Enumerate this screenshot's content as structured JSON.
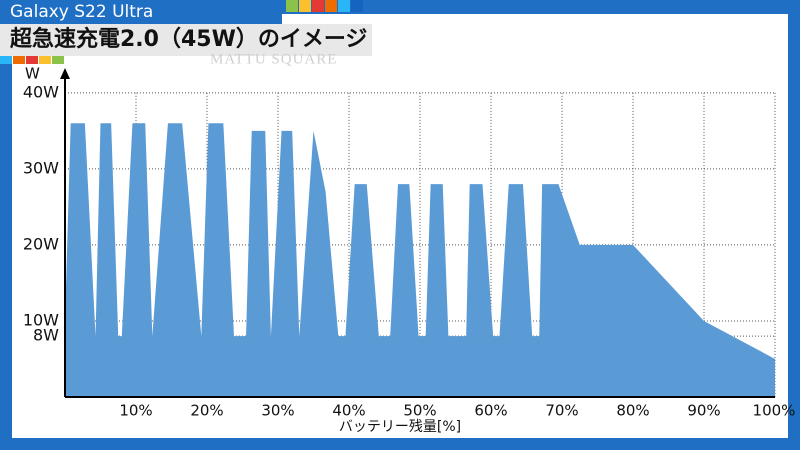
{
  "chart_data": {
    "type": "area",
    "subtitle": "Galaxy S22 Ultra",
    "title": "超急速充電2.0（45W）のイメージ",
    "watermark": "MATTU SQUARE",
    "ylabel": "W",
    "xlabel": "バッテリー残量[%]",
    "xlim": [
      0,
      100
    ],
    "ylim": [
      0,
      43
    ],
    "xticks": [
      {
        "value": 10,
        "label": "10%"
      },
      {
        "value": 20,
        "label": "20%"
      },
      {
        "value": 30,
        "label": "30%"
      },
      {
        "value": 40,
        "label": "40%"
      },
      {
        "value": 50,
        "label": "50%"
      },
      {
        "value": 60,
        "label": "60%"
      },
      {
        "value": 70,
        "label": "70%"
      },
      {
        "value": 80,
        "label": "80%"
      },
      {
        "value": 90,
        "label": "90%"
      },
      {
        "value": 100,
        "label": "100%"
      }
    ],
    "yticks": [
      {
        "value": 8,
        "label": "8W"
      },
      {
        "value": 10,
        "label": "10W"
      },
      {
        "value": 20,
        "label": "20W"
      },
      {
        "value": 30,
        "label": "30W"
      },
      {
        "value": 40,
        "label": "40W"
      }
    ],
    "grid": true,
    "color": "#5b9bd5",
    "x": [
      0,
      0.8,
      2.8,
      4.3,
      5.0,
      6.5,
      7.5,
      8.0,
      9.5,
      11.3,
      12.3,
      14.5,
      16.5,
      19.2,
      20.2,
      22.3,
      23.8,
      25.5,
      26.3,
      28.2,
      29,
      30.5,
      32,
      33,
      35,
      36.7,
      38.5,
      39.5,
      40.8,
      42.5,
      44.2,
      45.8,
      46.9,
      48.5,
      49.8,
      50.8,
      51.5,
      53.2,
      54,
      56.5,
      57,
      58.8,
      60.3,
      61.2,
      62.5,
      64.5,
      65.8,
      66.8,
      67.2,
      69.5,
      72.5,
      80,
      90,
      100
    ],
    "values": [
      10,
      36,
      36,
      8,
      36,
      36,
      8,
      8,
      36,
      36,
      8,
      36,
      36,
      8,
      36,
      36,
      8,
      8,
      35,
      35,
      8,
      35,
      35,
      8,
      35,
      27,
      8,
      8,
      28,
      28,
      8,
      8,
      28,
      28,
      8,
      8,
      28,
      28,
      8,
      8,
      28,
      28,
      8,
      8,
      28,
      28,
      8,
      8,
      28,
      28,
      20,
      20,
      10,
      5
    ]
  }
}
